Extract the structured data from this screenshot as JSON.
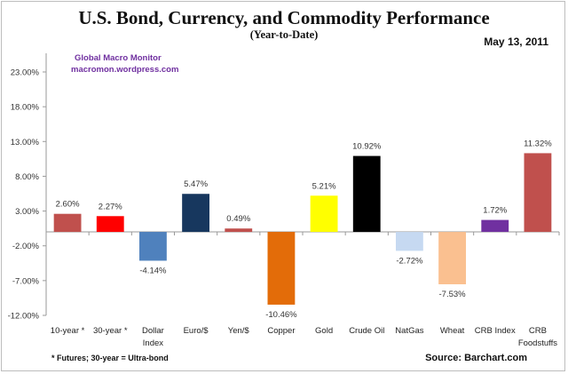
{
  "chart_data": {
    "type": "bar",
    "title": "U.S. Bond, Currency, and Commodity Performance",
    "subtitle": "(Year-to-Date)",
    "date": "May 13, 2011",
    "watermark": [
      "Global Macro Monitor",
      "macromon.wordpress.com"
    ],
    "xlabel": "",
    "ylabel": "",
    "ylim": [
      -12,
      28
    ],
    "yticks": [
      23,
      18,
      13,
      8,
      3,
      -2,
      -7,
      -12
    ],
    "ytick_labels": [
      "23.00%",
      "18.00%",
      "13.00%",
      "8.00%",
      "3.00%",
      "-2.00%",
      "-7.00%",
      "-12.00%"
    ],
    "grid": false,
    "legend": "none",
    "categories": [
      [
        "10-year *"
      ],
      [
        "30-year *"
      ],
      [
        "Dollar",
        "Index"
      ],
      [
        "Euro/$"
      ],
      [
        "Yen/$"
      ],
      [
        "Copper"
      ],
      [
        "Gold"
      ],
      [
        "Crude Oil"
      ],
      [
        "NatGas"
      ],
      [
        "Wheat"
      ],
      [
        "CRB Index"
      ],
      [
        "CRB",
        "Foodstuffs"
      ]
    ],
    "values": [
      2.6,
      2.27,
      -4.14,
      5.47,
      0.49,
      -10.46,
      5.21,
      10.92,
      -2.72,
      -7.53,
      1.72,
      11.32
    ],
    "value_labels": [
      "2.60%",
      "2.27%",
      "-4.14%",
      "5.47%",
      "0.49%",
      "-10.46%",
      "5.21%",
      "10.92%",
      "-2.72%",
      "-7.53%",
      "1.72%",
      "11.32%"
    ],
    "colors": [
      "#c0504d",
      "#ff0000",
      "#4f81bd",
      "#17375e",
      "#c0504d",
      "#e36c09",
      "#ffff00",
      "#000000",
      "#c6d9f1",
      "#fac090",
      "#7030a0",
      "#c0504d"
    ],
    "footnote": "* Futures; 30-year = Ultra-bond",
    "source": "Source:  Barchart.com"
  }
}
